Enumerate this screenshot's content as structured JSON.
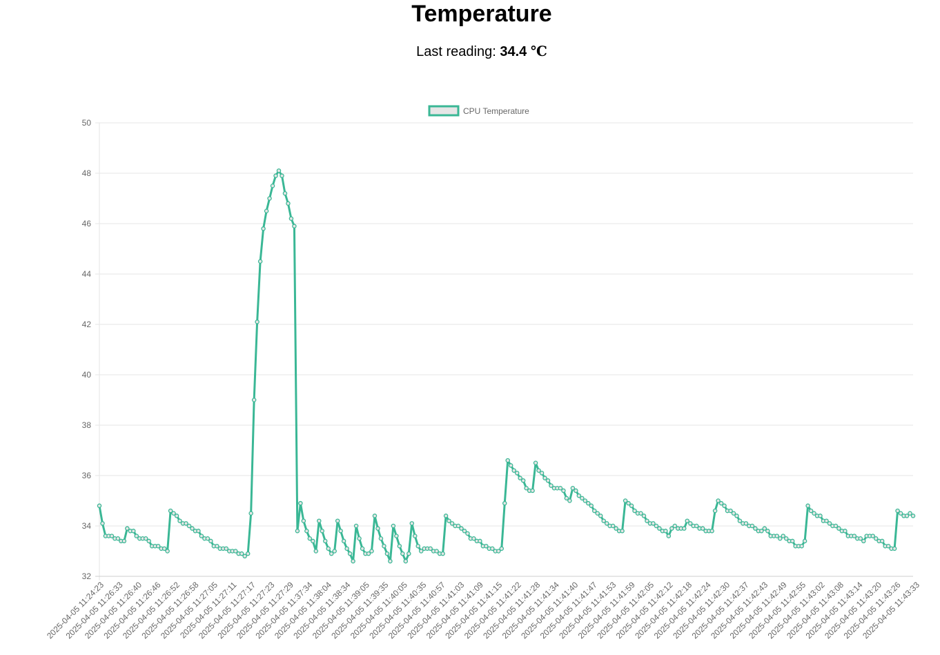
{
  "header": {
    "title": "Temperature",
    "reading_label": "Last reading:",
    "reading_value": "34.4",
    "reading_unit": "℃"
  },
  "colors": {
    "line": "#3ab795",
    "legend_fill": "#e6e6e6",
    "grid": "#e5e5e5",
    "tick_text": "#666666"
  },
  "chart_data": {
    "type": "line",
    "title": "",
    "xlabel": "",
    "ylabel": "",
    "ylim": [
      32,
      50
    ],
    "yticks": [
      32,
      34,
      36,
      38,
      40,
      42,
      44,
      46,
      48,
      50
    ],
    "grid": true,
    "legend_position": "top-center",
    "x_tick_labels": [
      "2025-04-05 11:24:23",
      "2025-04-05 11:26:33",
      "2025-04-05 11:26:40",
      "2025-04-05 11:26:46",
      "2025-04-05 11:26:52",
      "2025-04-05 11:26:58",
      "2025-04-05 11:27:05",
      "2025-04-05 11:27:11",
      "2025-04-05 11:27:17",
      "2025-04-05 11:27:23",
      "2025-04-05 11:27:29",
      "2025-04-05 11:37:34",
      "2025-04-05 11:38:04",
      "2025-04-05 11:38:34",
      "2025-04-05 11:39:05",
      "2025-04-05 11:39:35",
      "2025-04-05 11:40:05",
      "2025-04-05 11:40:35",
      "2025-04-05 11:40:57",
      "2025-04-05 11:41:03",
      "2025-04-05 11:41:09",
      "2025-04-05 11:41:15",
      "2025-04-05 11:41:22",
      "2025-04-05 11:41:28",
      "2025-04-05 11:41:34",
      "2025-04-05 11:41:40",
      "2025-04-05 11:41:47",
      "2025-04-05 11:41:53",
      "2025-04-05 11:41:59",
      "2025-04-05 11:42:05",
      "2025-04-05 11:42:12",
      "2025-04-05 11:42:18",
      "2025-04-05 11:42:24",
      "2025-04-05 11:42:30",
      "2025-04-05 11:42:37",
      "2025-04-05 11:42:43",
      "2025-04-05 11:42:49",
      "2025-04-05 11:42:55",
      "2025-04-05 11:43:02",
      "2025-04-05 11:43:08",
      "2025-04-05 11:43:14",
      "2025-04-05 11:43:20",
      "2025-04-05 11:43:26",
      "2025-04-05 11:43:33"
    ],
    "series": [
      {
        "name": "CPU Temperature",
        "values": [
          34.8,
          34.1,
          33.6,
          33.6,
          33.6,
          33.5,
          33.5,
          33.4,
          33.4,
          33.9,
          33.8,
          33.8,
          33.6,
          33.5,
          33.5,
          33.5,
          33.4,
          33.2,
          33.2,
          33.2,
          33.1,
          33.1,
          33.0,
          34.6,
          34.5,
          34.4,
          34.2,
          34.1,
          34.1,
          34.0,
          33.9,
          33.8,
          33.8,
          33.6,
          33.5,
          33.5,
          33.4,
          33.2,
          33.2,
          33.1,
          33.1,
          33.1,
          33.0,
          33.0,
          33.0,
          32.9,
          32.9,
          32.8,
          32.9,
          34.5,
          39.0,
          42.1,
          44.5,
          45.8,
          46.5,
          47.0,
          47.5,
          47.9,
          48.1,
          47.9,
          47.2,
          46.8,
          46.2,
          45.9,
          33.8,
          34.9,
          34.2,
          33.8,
          33.5,
          33.4,
          33.0,
          34.2,
          33.8,
          33.4,
          33.1,
          32.9,
          33.0,
          34.2,
          33.8,
          33.4,
          33.1,
          32.9,
          32.6,
          34.0,
          33.5,
          33.1,
          32.9,
          32.9,
          33.0,
          34.4,
          33.9,
          33.5,
          33.2,
          32.9,
          32.6,
          34.0,
          33.6,
          33.2,
          32.9,
          32.6,
          32.9,
          34.1,
          33.6,
          33.2,
          33.0,
          33.1,
          33.1,
          33.1,
          33.0,
          33.0,
          32.9,
          32.9,
          34.4,
          34.2,
          34.1,
          34.0,
          34.0,
          33.9,
          33.8,
          33.7,
          33.5,
          33.5,
          33.4,
          33.4,
          33.2,
          33.2,
          33.1,
          33.1,
          33.0,
          33.0,
          33.1,
          34.9,
          36.6,
          36.4,
          36.2,
          36.1,
          35.9,
          35.8,
          35.5,
          35.4,
          35.4,
          36.5,
          36.2,
          36.1,
          35.9,
          35.8,
          35.6,
          35.5,
          35.5,
          35.5,
          35.4,
          35.1,
          35.0,
          35.5,
          35.4,
          35.2,
          35.1,
          35.0,
          34.9,
          34.8,
          34.6,
          34.5,
          34.4,
          34.2,
          34.1,
          34.0,
          34.0,
          33.9,
          33.8,
          33.8,
          35.0,
          34.9,
          34.8,
          34.6,
          34.5,
          34.5,
          34.4,
          34.2,
          34.1,
          34.1,
          34.0,
          33.9,
          33.8,
          33.8,
          33.6,
          33.9,
          34.0,
          33.9,
          33.9,
          33.9,
          34.2,
          34.1,
          34.0,
          34.0,
          33.9,
          33.9,
          33.8,
          33.8,
          33.8,
          34.6,
          35.0,
          34.9,
          34.8,
          34.6,
          34.6,
          34.5,
          34.4,
          34.2,
          34.1,
          34.1,
          34.0,
          34.0,
          33.9,
          33.8,
          33.8,
          33.9,
          33.8,
          33.6,
          33.6,
          33.6,
          33.5,
          33.6,
          33.5,
          33.4,
          33.4,
          33.2,
          33.2,
          33.2,
          33.4,
          34.8,
          34.6,
          34.5,
          34.4,
          34.4,
          34.2,
          34.2,
          34.1,
          34.0,
          34.0,
          33.9,
          33.8,
          33.8,
          33.6,
          33.6,
          33.6,
          33.5,
          33.5,
          33.4,
          33.6,
          33.6,
          33.6,
          33.5,
          33.4,
          33.4,
          33.2,
          33.2,
          33.1,
          33.1,
          34.6,
          34.5,
          34.4,
          34.4,
          34.5,
          34.4
        ]
      }
    ]
  }
}
